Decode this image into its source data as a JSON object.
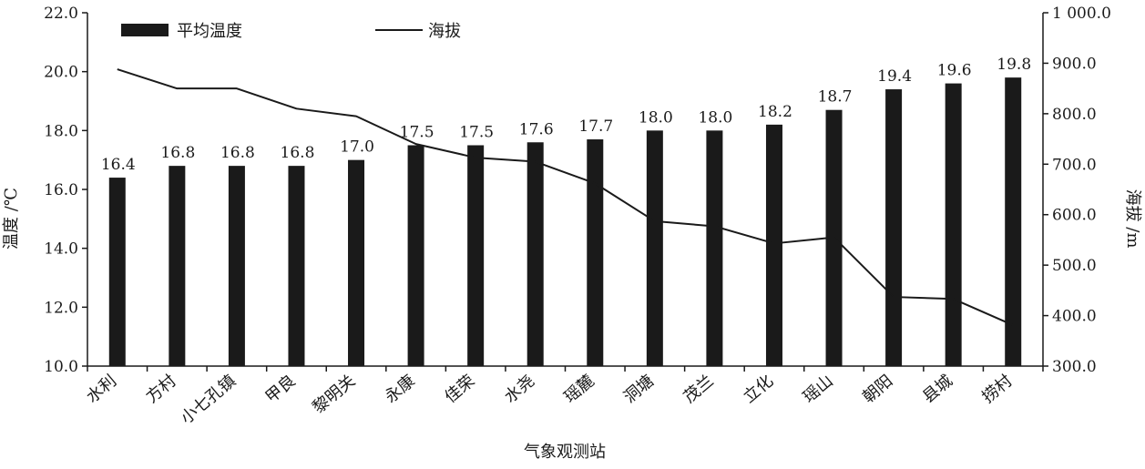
{
  "chart_data": {
    "type": "bar",
    "title": "",
    "xlabel": "气象观测站",
    "ylabel": "温度 /℃",
    "y2label": "海拔 /m",
    "ylim": [
      10.0,
      22.0
    ],
    "y2lim": [
      300.0,
      1000.0
    ],
    "yticks": [
      "10.0",
      "12.0",
      "14.0",
      "16.0",
      "18.0",
      "20.0",
      "22.0"
    ],
    "y2ticks": [
      "300.0",
      "400.0",
      "500.0",
      "600.0",
      "700.0",
      "800.0",
      "900.0",
      "1 000.0"
    ],
    "categories": [
      "水利",
      "方村",
      "小七孔镇",
      "甲良",
      "黎明关",
      "永康",
      "佳荣",
      "水尧",
      "瑶麓",
      "洞塘",
      "茂兰",
      "立化",
      "瑶山",
      "朝阳",
      "县城",
      "捞村"
    ],
    "series": [
      {
        "name": "平均温度",
        "kind": "bar",
        "axis": "left",
        "values": [
          16.4,
          16.8,
          16.8,
          16.8,
          17.0,
          17.5,
          17.5,
          17.6,
          17.7,
          18.0,
          18.0,
          18.2,
          18.7,
          19.4,
          19.6,
          19.8
        ],
        "labels": [
          "16.4",
          "16.8",
          "16.8",
          "16.8",
          "17.0",
          "17.5",
          "17.5",
          "17.6",
          "17.7",
          "18.0",
          "18.0",
          "18.2",
          "18.7",
          "19.4",
          "19.6",
          "19.8"
        ],
        "color": "#1a1a1a"
      },
      {
        "name": "海拔",
        "kind": "line",
        "axis": "right",
        "values": [
          888,
          850,
          850,
          810,
          795,
          740,
          713,
          705,
          662,
          587,
          577,
          543,
          555,
          437,
          433,
          381
        ],
        "color": "#1a1a1a"
      }
    ],
    "grid": false,
    "legend_position": "top-left"
  }
}
